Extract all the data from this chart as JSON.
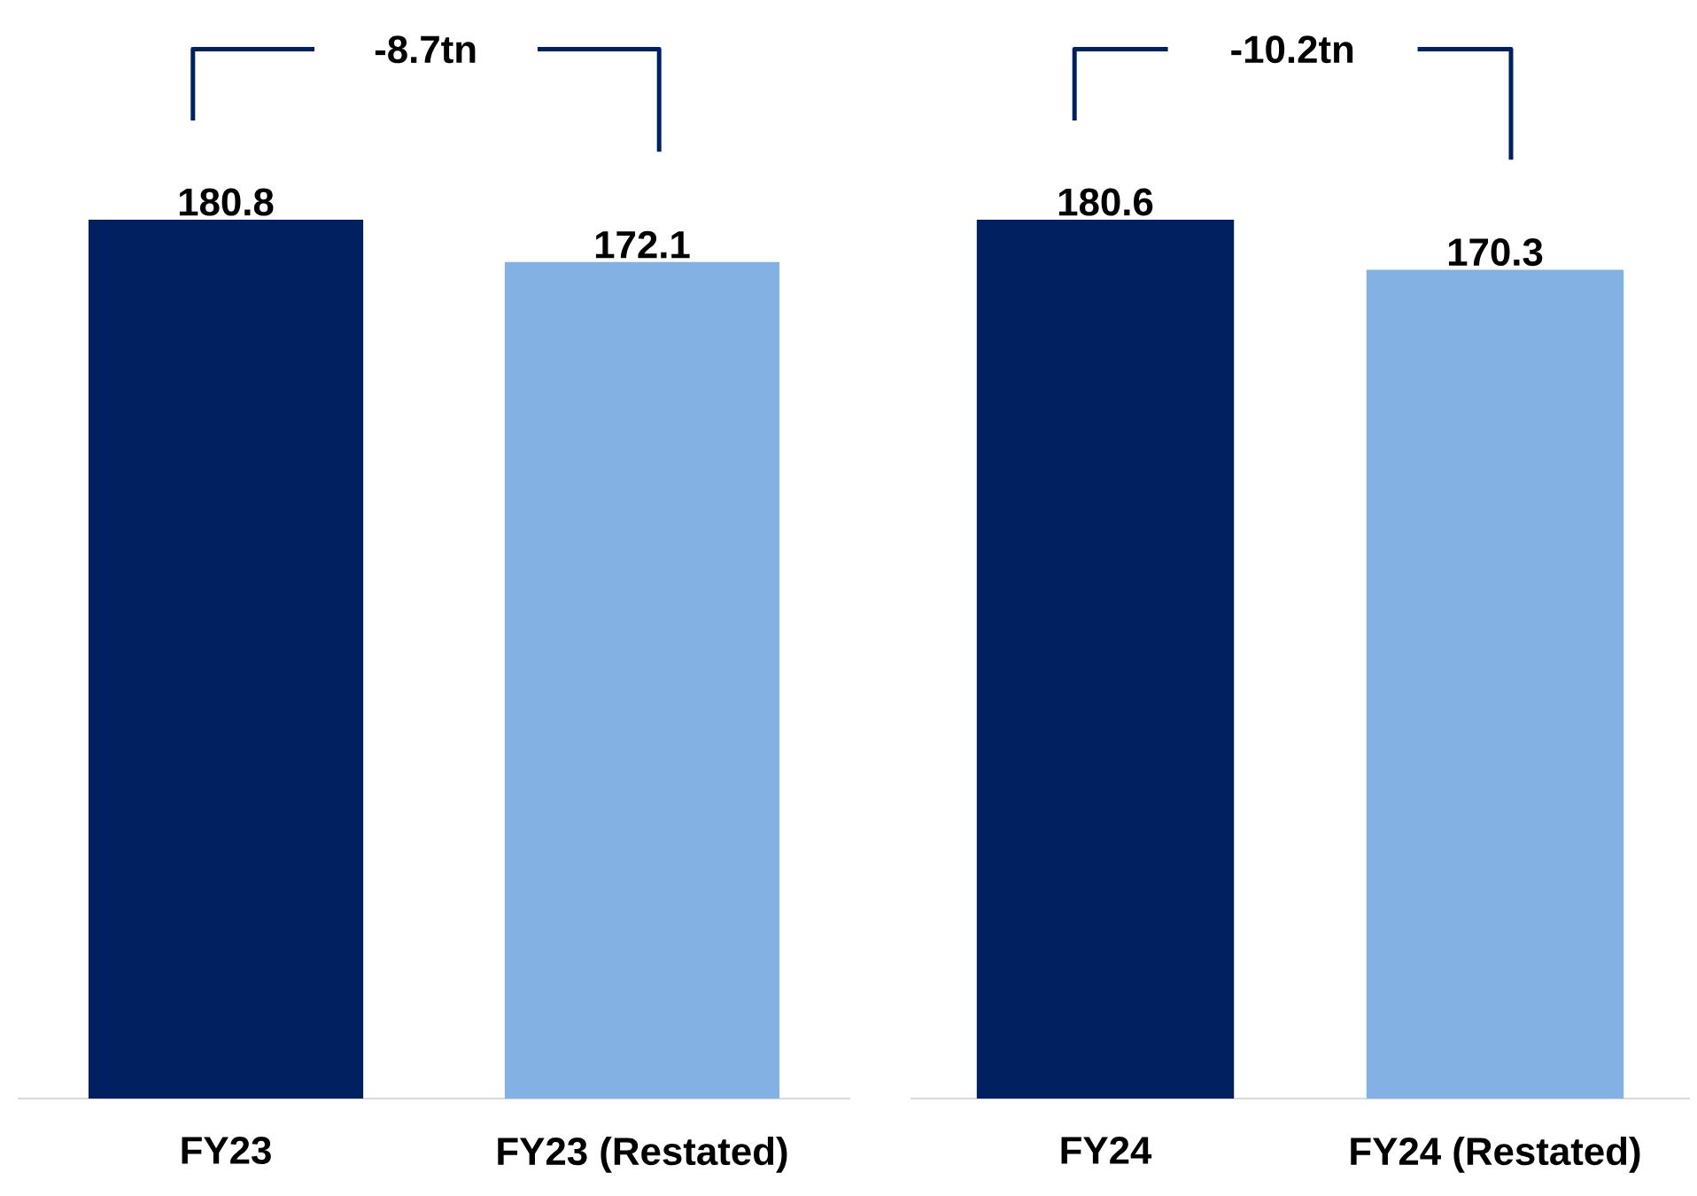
{
  "chart_data": [
    {
      "type": "bar",
      "categories": [
        "FY23",
        "FY23 (Restated)"
      ],
      "values": [
        180.8,
        172.1
      ],
      "colors": [
        "#002060",
        "#83b1e3"
      ],
      "data_labels": true,
      "annotations": [
        "-8.7tn"
      ]
    },
    {
      "type": "bar",
      "categories": [
        "FY24",
        "FY24 (Restated)"
      ],
      "values": [
        180.6,
        170.3
      ],
      "colors": [
        "#002060",
        "#83b1e3"
      ],
      "data_labels": true,
      "annotations": [
        "-10.2tn"
      ]
    }
  ]
}
